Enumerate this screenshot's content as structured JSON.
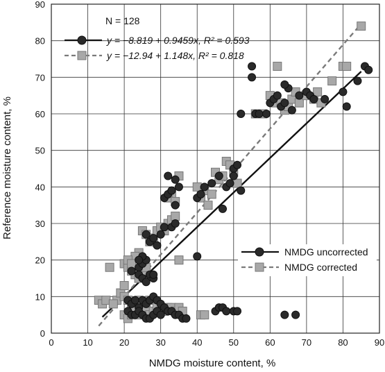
{
  "chart_data": {
    "type": "scatter",
    "xlabel": "NMDG moisture content, %",
    "ylabel": "Reference moisture content, %",
    "xlim": [
      0,
      90
    ],
    "ylim": [
      0,
      90
    ],
    "xticks": [
      0,
      10,
      20,
      30,
      40,
      50,
      60,
      70,
      80,
      90
    ],
    "yticks": [
      0,
      10,
      20,
      30,
      40,
      50,
      60,
      70,
      80,
      90
    ],
    "grid": true,
    "annotations": {
      "n_label": "N = 128",
      "eq_uncorrected": "y = −8.819 + 0.9459x, R² = 0.593",
      "eq_corrected": "y = −12.94 + 1.148x, R² = 0.818"
    },
    "legend_position": "lower-right",
    "series": [
      {
        "name": "NMDG uncorrected",
        "marker": "circle",
        "color": "#2a2a2a",
        "points": [
          [
            24,
            18
          ],
          [
            25,
            19
          ],
          [
            26,
            20
          ],
          [
            24,
            16
          ],
          [
            25,
            15
          ],
          [
            26,
            14
          ],
          [
            27,
            16
          ],
          [
            25,
            21
          ],
          [
            22,
            17
          ],
          [
            24,
            20
          ],
          [
            28,
            15
          ],
          [
            27,
            25
          ],
          [
            28,
            26
          ],
          [
            29,
            24
          ],
          [
            30,
            27
          ],
          [
            31,
            29
          ],
          [
            33,
            29
          ],
          [
            34,
            30
          ],
          [
            31,
            37
          ],
          [
            32,
            38
          ],
          [
            33,
            39
          ],
          [
            34,
            35
          ],
          [
            32,
            43
          ],
          [
            34,
            42
          ],
          [
            35,
            40
          ],
          [
            40,
            37
          ],
          [
            41,
            38
          ],
          [
            42,
            40
          ],
          [
            44,
            41
          ],
          [
            46,
            43
          ],
          [
            47,
            34
          ],
          [
            48,
            40
          ],
          [
            50,
            45
          ],
          [
            51,
            46
          ],
          [
            50,
            43
          ],
          [
            49,
            41
          ],
          [
            52,
            39
          ],
          [
            55,
            70
          ],
          [
            55,
            73
          ],
          [
            56,
            60
          ],
          [
            57,
            60
          ],
          [
            59,
            60
          ],
          [
            60,
            63
          ],
          [
            61,
            64
          ],
          [
            62,
            65
          ],
          [
            63,
            62
          ],
          [
            64,
            63
          ],
          [
            65,
            67
          ],
          [
            66,
            61
          ],
          [
            68,
            65
          ],
          [
            70,
            66
          ],
          [
            71,
            65
          ],
          [
            75,
            64
          ],
          [
            80,
            66
          ],
          [
            81,
            62
          ],
          [
            84,
            69
          ],
          [
            86,
            73
          ],
          [
            87,
            72
          ],
          [
            64,
            68
          ],
          [
            72,
            64
          ],
          [
            52,
            60
          ],
          [
            21,
            9
          ],
          [
            22,
            8
          ],
          [
            23,
            9
          ],
          [
            24,
            7
          ],
          [
            25,
            9
          ],
          [
            26,
            8
          ],
          [
            27,
            9
          ],
          [
            28,
            10
          ],
          [
            29,
            9
          ],
          [
            30,
            8
          ],
          [
            31,
            7
          ],
          [
            32,
            6
          ],
          [
            33,
            6
          ],
          [
            34,
            5
          ],
          [
            35,
            5
          ],
          [
            21,
            6
          ],
          [
            22,
            5
          ],
          [
            23,
            5
          ],
          [
            24,
            6
          ],
          [
            25,
            5
          ],
          [
            26,
            4
          ],
          [
            27,
            4
          ],
          [
            28,
            5
          ],
          [
            29,
            6
          ],
          [
            30,
            5
          ],
          [
            36,
            4
          ],
          [
            37,
            4
          ],
          [
            45,
            6
          ],
          [
            46,
            7
          ],
          [
            47,
            7
          ],
          [
            48,
            6
          ],
          [
            50,
            6
          ],
          [
            51,
            6
          ],
          [
            40,
            21
          ],
          [
            64,
            5
          ],
          [
            67,
            5
          ],
          [
            28,
            16
          ],
          [
            26,
            27
          ]
        ]
      },
      {
        "name": "NMDG corrected",
        "marker": "square",
        "color": "#a8a8a8",
        "points": [
          [
            16,
            18
          ],
          [
            20,
            19
          ],
          [
            21,
            18
          ],
          [
            22,
            17
          ],
          [
            23,
            16
          ],
          [
            24,
            15
          ],
          [
            25,
            17
          ],
          [
            24,
            22
          ],
          [
            23,
            21
          ],
          [
            21,
            20
          ],
          [
            22,
            19
          ],
          [
            25,
            20
          ],
          [
            26,
            18
          ],
          [
            25,
            28
          ],
          [
            26,
            27
          ],
          [
            27,
            25
          ],
          [
            28,
            26
          ],
          [
            29,
            28
          ],
          [
            30,
            29
          ],
          [
            31,
            28
          ],
          [
            32,
            30
          ],
          [
            33,
            31
          ],
          [
            34,
            32
          ],
          [
            35,
            20
          ],
          [
            35,
            43
          ],
          [
            33,
            38
          ],
          [
            32,
            37
          ],
          [
            34,
            36
          ],
          [
            40,
            40
          ],
          [
            41,
            37
          ],
          [
            42,
            39
          ],
          [
            43,
            35
          ],
          [
            44,
            38
          ],
          [
            45,
            44
          ],
          [
            46,
            42
          ],
          [
            47,
            43
          ],
          [
            48,
            47
          ],
          [
            49,
            46
          ],
          [
            50,
            44
          ],
          [
            51,
            41
          ],
          [
            56,
            60
          ],
          [
            58,
            60
          ],
          [
            60,
            65
          ],
          [
            61,
            63
          ],
          [
            62,
            73
          ],
          [
            63,
            63
          ],
          [
            64,
            61
          ],
          [
            65,
            62
          ],
          [
            66,
            64
          ],
          [
            67,
            66
          ],
          [
            68,
            63
          ],
          [
            70,
            65
          ],
          [
            72,
            64
          ],
          [
            73,
            66
          ],
          [
            74,
            63
          ],
          [
            77,
            69
          ],
          [
            80,
            73
          ],
          [
            81,
            73
          ],
          [
            85,
            84
          ],
          [
            13,
            9
          ],
          [
            14,
            8
          ],
          [
            15,
            9
          ],
          [
            18,
            9
          ],
          [
            19,
            11
          ],
          [
            20,
            10
          ],
          [
            21,
            9
          ],
          [
            22,
            8
          ],
          [
            23,
            7
          ],
          [
            24,
            9
          ],
          [
            25,
            8
          ],
          [
            26,
            8
          ],
          [
            27,
            9
          ],
          [
            20,
            5
          ],
          [
            21,
            4
          ],
          [
            22,
            5
          ],
          [
            23,
            6
          ],
          [
            24,
            5
          ],
          [
            25,
            6
          ],
          [
            26,
            6
          ],
          [
            27,
            5
          ],
          [
            28,
            6
          ],
          [
            29,
            7
          ],
          [
            30,
            6
          ],
          [
            31,
            6
          ],
          [
            32,
            7
          ],
          [
            33,
            7
          ],
          [
            34,
            6
          ],
          [
            35,
            7
          ],
          [
            36,
            6
          ],
          [
            41,
            5
          ],
          [
            42,
            5
          ],
          [
            17,
            8
          ],
          [
            20,
            13
          ]
        ]
      }
    ],
    "fit_lines": [
      {
        "series": "NMDG uncorrected",
        "intercept": -8.819,
        "slope": 0.9459,
        "x_range": [
          14,
          85
        ],
        "color": "#111111",
        "dash": "solid"
      },
      {
        "series": "NMDG corrected",
        "intercept": -12.94,
        "slope": 1.148,
        "x_range": [
          13,
          85
        ],
        "color": "#7a7a7a",
        "dash": "dashed"
      }
    ]
  }
}
